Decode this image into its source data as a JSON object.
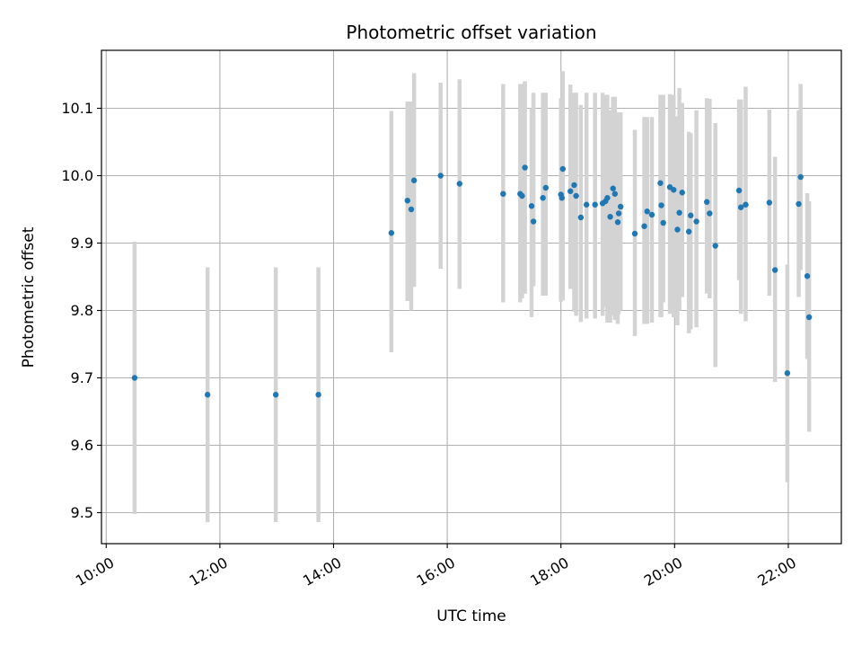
{
  "chart_data": {
    "type": "scatter",
    "title": "Photometric offset variation",
    "xlabel": "UTC time",
    "ylabel": "Photometric offset",
    "grid": true,
    "x_ticks": [
      "10:00",
      "12:00",
      "14:00",
      "16:00",
      "18:00",
      "20:00",
      "22:00"
    ],
    "y_ticks": [
      "9.5",
      "9.6",
      "9.7",
      "9.8",
      "9.9",
      "10.0",
      "10.1"
    ],
    "xlim": [
      "09:55",
      "22:56"
    ],
    "ylim": [
      9.454,
      10.186
    ],
    "colors": {
      "point": "#1f77b4",
      "errorbar": "#d3d3d3",
      "grid": "#b0b0b0"
    },
    "series": [
      {
        "x": [
          "10:30",
          "11:47",
          "12:59",
          "13:44",
          "15:01",
          "15:18",
          "15:22",
          "15:25",
          "15:53",
          "16:13",
          "16:59",
          "17:17",
          "17:19",
          "17:22",
          "17:29",
          "17:31",
          "17:41",
          "17:44",
          "18:00",
          "18:01",
          "18:02",
          "18:10",
          "18:14",
          "18:16",
          "18:21",
          "18:27",
          "18:36",
          "18:44",
          "18:47",
          "18:49",
          "18:52",
          "18:55",
          "18:57",
          "19:00",
          "19:01",
          "19:03",
          "19:18",
          "19:28",
          "19:31",
          "19:36",
          "19:45",
          "19:46",
          "19:48",
          "19:55",
          "19:59",
          "20:03",
          "20:05",
          "20:08",
          "20:15",
          "20:17",
          "20:23",
          "20:34",
          "20:37",
          "20:43",
          "21:08",
          "21:10",
          "21:15",
          "21:40",
          "21:46",
          "21:59",
          "22:11",
          "22:13",
          "22:20",
          "22:22"
        ],
        "y": [
          9.7,
          9.675,
          9.675,
          9.675,
          9.915,
          9.963,
          9.95,
          9.993,
          10.0,
          9.988,
          9.973,
          9.973,
          9.97,
          10.012,
          9.955,
          9.932,
          9.967,
          9.982,
          9.972,
          9.967,
          10.01,
          9.977,
          9.986,
          9.97,
          9.938,
          9.957,
          9.957,
          9.959,
          9.962,
          9.967,
          9.939,
          9.981,
          9.973,
          9.931,
          9.944,
          9.954,
          9.914,
          9.925,
          9.947,
          9.942,
          9.989,
          9.956,
          9.93,
          9.983,
          9.979,
          9.92,
          9.945,
          9.975,
          9.917,
          9.941,
          9.932,
          9.961,
          9.944,
          9.896,
          9.978,
          9.953,
          9.957,
          9.96,
          9.86,
          9.707,
          9.958,
          9.998,
          9.851,
          9.79
        ],
        "err_low": [
          9.498,
          9.486,
          9.486,
          9.486,
          9.738,
          9.814,
          9.8,
          9.835,
          9.862,
          9.832,
          9.812,
          9.812,
          9.818,
          9.825,
          9.79,
          9.836,
          9.822,
          9.822,
          9.813,
          9.833,
          9.815,
          9.832,
          9.798,
          9.792,
          9.783,
          9.788,
          9.788,
          9.792,
          9.805,
          9.782,
          9.782,
          9.793,
          9.786,
          9.78,
          9.795,
          9.8,
          9.762,
          9.78,
          9.78,
          9.782,
          9.79,
          9.79,
          9.812,
          9.795,
          9.79,
          9.778,
          9.8,
          9.82,
          9.766,
          9.772,
          9.775,
          9.825,
          9.818,
          9.716,
          9.845,
          9.795,
          9.784,
          9.822,
          9.694,
          9.545,
          9.82,
          9.86,
          9.728,
          9.62
        ],
        "err_high": [
          9.902,
          9.864,
          9.864,
          9.864,
          10.096,
          10.11,
          10.11,
          10.152,
          10.138,
          10.143,
          10.136,
          10.136,
          10.136,
          10.14,
          10.1,
          10.123,
          10.123,
          10.123,
          10.115,
          10.103,
          10.155,
          10.135,
          10.123,
          10.123,
          10.105,
          10.123,
          10.123,
          10.123,
          10.119,
          10.12,
          10.097,
          10.117,
          10.117,
          10.094,
          10.094,
          10.094,
          10.068,
          10.087,
          10.087,
          10.087,
          10.12,
          10.12,
          10.12,
          10.121,
          10.12,
          10.088,
          10.13,
          10.108,
          10.065,
          10.063,
          10.097,
          10.115,
          10.114,
          10.078,
          10.113,
          10.113,
          10.132,
          10.098,
          10.028,
          9.868,
          10.097,
          10.136,
          9.974,
          9.962
        ]
      }
    ]
  }
}
